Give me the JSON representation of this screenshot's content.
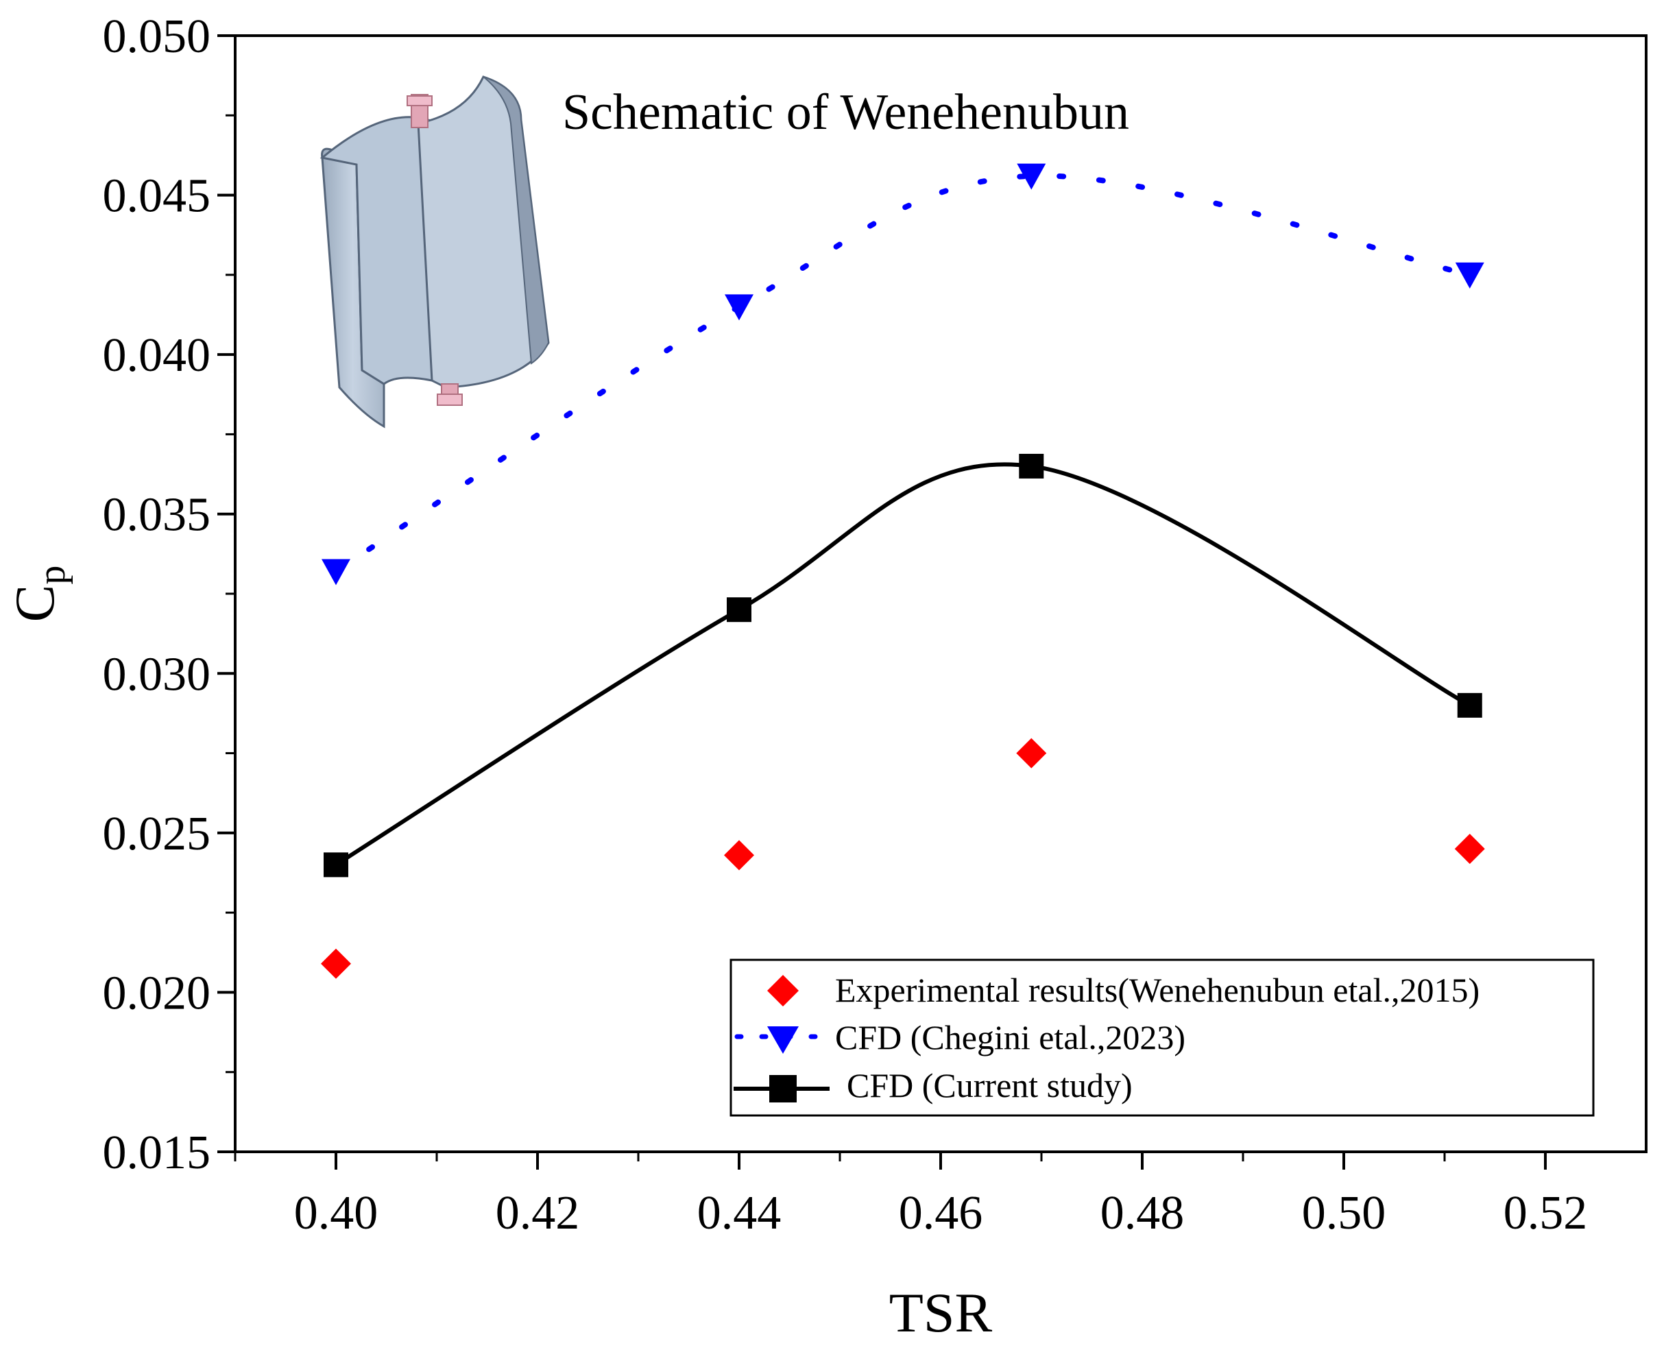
{
  "chart_data": {
    "type": "line",
    "annotation": "Schematic of Wenehenubun",
    "xlabel": "TSR",
    "ylabel_main": "C",
    "ylabel_sub": "p",
    "xlim": [
      0.39,
      0.53
    ],
    "ylim": [
      0.015,
      0.05
    ],
    "xticks": [
      "0.40",
      "0.42",
      "0.44",
      "0.46",
      "0.48",
      "0.50",
      "0.52"
    ],
    "xtick_values": [
      0.4,
      0.42,
      0.44,
      0.46,
      0.48,
      0.5,
      0.52
    ],
    "yticks": [
      "0.015",
      "0.020",
      "0.025",
      "0.030",
      "0.035",
      "0.040",
      "0.045",
      "0.050"
    ],
    "ytick_values": [
      0.015,
      0.02,
      0.025,
      0.03,
      0.035,
      0.04,
      0.045,
      0.05
    ],
    "grid": false,
    "legend_position": "bottom-right",
    "series": [
      {
        "name": "Experimental results(Wenehenubun etal.,2015)",
        "marker": "diamond",
        "line": "none",
        "color": "#ff0000",
        "x": [
          0.4,
          0.44,
          0.469,
          0.5125
        ],
        "y": [
          0.0209,
          0.0243,
          0.0275,
          0.0245
        ]
      },
      {
        "name": "CFD (Chegini etal.,2023)",
        "marker": "triangle-down",
        "line": "dotted",
        "color": "#0000ff",
        "x": [
          0.4,
          0.44,
          0.469,
          0.5125
        ],
        "y": [
          0.0332,
          0.0415,
          0.0456,
          0.0425
        ]
      },
      {
        "name": "CFD (Current study)",
        "marker": "square",
        "line": "solid",
        "color": "#000000",
        "x": [
          0.4,
          0.44,
          0.469,
          0.5125
        ],
        "y": [
          0.024,
          0.032,
          0.0365,
          0.029
        ]
      }
    ]
  }
}
